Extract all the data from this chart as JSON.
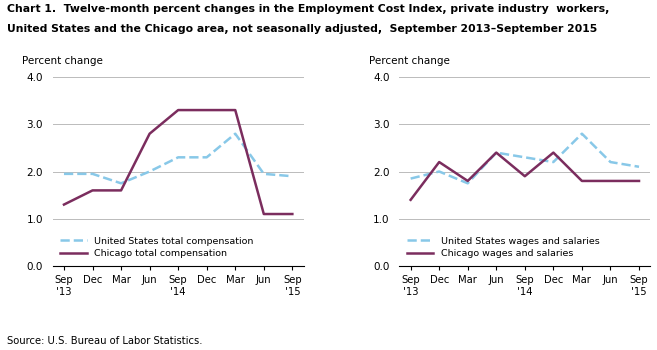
{
  "title_line1": "Chart 1.  Twelve-month percent changes in the Employment Cost Index, private industry  workers,",
  "title_line2": "United States and the Chicago area, not seasonally adjusted,  September 2013–September 2015",
  "ylabel": "Percent change",
  "source": "Source: U.S. Bureau of Labor Statistics.",
  "x_labels": [
    "Sep\n'13",
    "Dec",
    "Mar",
    "Jun",
    "Sep\n'14",
    "Dec",
    "Mar",
    "Jun",
    "Sep\n'15"
  ],
  "ylim": [
    0.0,
    4.0
  ],
  "yticks": [
    0.0,
    1.0,
    2.0,
    3.0,
    4.0
  ],
  "left_us_total": [
    1.95,
    1.95,
    1.75,
    2.0,
    2.3,
    2.3,
    2.8,
    1.95,
    1.9
  ],
  "left_chicago_total": [
    1.3,
    1.6,
    1.6,
    2.8,
    3.3,
    3.3,
    3.3,
    1.1,
    1.1
  ],
  "right_us_wages": [
    1.85,
    2.0,
    1.75,
    2.4,
    2.3,
    2.2,
    2.8,
    2.2,
    2.1
  ],
  "right_chicago_wages": [
    1.4,
    2.2,
    1.8,
    2.4,
    1.9,
    2.4,
    1.8,
    1.8,
    1.8
  ],
  "us_color": "#88C8E8",
  "chicago_color": "#7B2D5E",
  "legend1_us": "United States total compensation",
  "legend1_chicago": "Chicago total compensation",
  "legend2_us": "United States wages and salaries",
  "legend2_chicago": "Chicago wages and salaries",
  "grid_color": "#BBBBBB",
  "background_color": "#FFFFFF"
}
